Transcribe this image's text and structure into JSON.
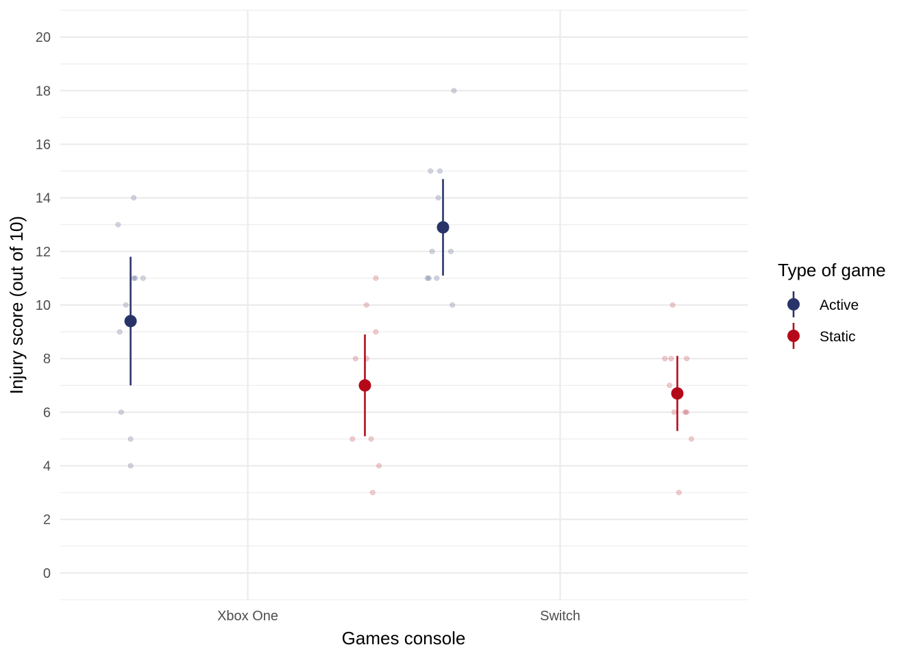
{
  "chart_data": {
    "type": "scatter",
    "xlabel": "Games console",
    "ylabel": "Injury score (out of 10)",
    "categories": [
      "Xbox One",
      "Switch"
    ],
    "ylim": [
      -1,
      21
    ],
    "yticks": [
      0,
      2,
      4,
      6,
      8,
      10,
      12,
      14,
      16,
      18,
      20
    ],
    "grid": true,
    "legend": {
      "title": "Type of game",
      "position": "right",
      "entries": [
        {
          "label": "Active",
          "color": "#283469"
        },
        {
          "label": "Static",
          "color": "#b5091a"
        }
      ]
    },
    "series": [
      {
        "name": "Active",
        "color": "#283469",
        "summary": [
          {
            "category": "Xbox One",
            "mean": 9.4,
            "lower": 7.0,
            "upper": 11.8
          },
          {
            "category": "Switch",
            "mean": 12.9,
            "lower": 11.1,
            "upper": 14.7
          }
        ],
        "points": [
          {
            "category": "Xbox One",
            "offset": -0.04,
            "y": 13
          },
          {
            "category": "Xbox One",
            "offset": 0.01,
            "y": 14
          },
          {
            "category": "Xbox One",
            "offset": 0.01,
            "y": 11
          },
          {
            "category": "Xbox One",
            "offset": 0.015,
            "y": 11
          },
          {
            "category": "Xbox One",
            "offset": 0.04,
            "y": 11
          },
          {
            "category": "Xbox One",
            "offset": -0.015,
            "y": 10
          },
          {
            "category": "Xbox One",
            "offset": -0.035,
            "y": 9
          },
          {
            "category": "Xbox One",
            "offset": -0.03,
            "y": 6
          },
          {
            "category": "Xbox One",
            "offset": 0.0,
            "y": 5
          },
          {
            "category": "Xbox One",
            "offset": 0.0,
            "y": 4
          },
          {
            "category": "Switch",
            "offset": 0.035,
            "y": 18
          },
          {
            "category": "Switch",
            "offset": -0.04,
            "y": 15
          },
          {
            "category": "Switch",
            "offset": -0.01,
            "y": 15
          },
          {
            "category": "Switch",
            "offset": -0.015,
            "y": 14
          },
          {
            "category": "Switch",
            "offset": -0.035,
            "y": 12
          },
          {
            "category": "Switch",
            "offset": 0.025,
            "y": 12
          },
          {
            "category": "Switch",
            "offset": -0.05,
            "y": 11
          },
          {
            "category": "Switch",
            "offset": -0.045,
            "y": 11
          },
          {
            "category": "Switch",
            "offset": -0.02,
            "y": 11
          },
          {
            "category": "Switch",
            "offset": 0.03,
            "y": 10
          }
        ]
      },
      {
        "name": "Static",
        "color": "#b5091a",
        "summary": [
          {
            "category": "Xbox One",
            "mean": 7.0,
            "lower": 5.1,
            "upper": 8.9
          },
          {
            "category": "Switch",
            "mean": 6.7,
            "lower": 5.3,
            "upper": 8.1
          }
        ],
        "points": [
          {
            "category": "Xbox One",
            "offset": 0.035,
            "y": 11
          },
          {
            "category": "Xbox One",
            "offset": 0.005,
            "y": 10
          },
          {
            "category": "Xbox One",
            "offset": 0.035,
            "y": 9
          },
          {
            "category": "Xbox One",
            "offset": -0.03,
            "y": 8
          },
          {
            "category": "Xbox One",
            "offset": 0.005,
            "y": 8
          },
          {
            "category": "Xbox One",
            "offset": -0.04,
            "y": 5
          },
          {
            "category": "Xbox One",
            "offset": 0.02,
            "y": 5
          },
          {
            "category": "Xbox One",
            "offset": 0.045,
            "y": 4
          },
          {
            "category": "Xbox One",
            "offset": 0.025,
            "y": 3
          },
          {
            "category": "Switch",
            "offset": -0.015,
            "y": 10
          },
          {
            "category": "Switch",
            "offset": -0.04,
            "y": 8
          },
          {
            "category": "Switch",
            "offset": -0.02,
            "y": 8
          },
          {
            "category": "Switch",
            "offset": 0.03,
            "y": 8
          },
          {
            "category": "Switch",
            "offset": -0.025,
            "y": 7
          },
          {
            "category": "Switch",
            "offset": -0.01,
            "y": 6
          },
          {
            "category": "Switch",
            "offset": 0.025,
            "y": 6
          },
          {
            "category": "Switch",
            "offset": 0.03,
            "y": 6
          },
          {
            "category": "Switch",
            "offset": 0.045,
            "y": 5
          },
          {
            "category": "Switch",
            "offset": 0.005,
            "y": 3
          }
        ]
      }
    ]
  }
}
